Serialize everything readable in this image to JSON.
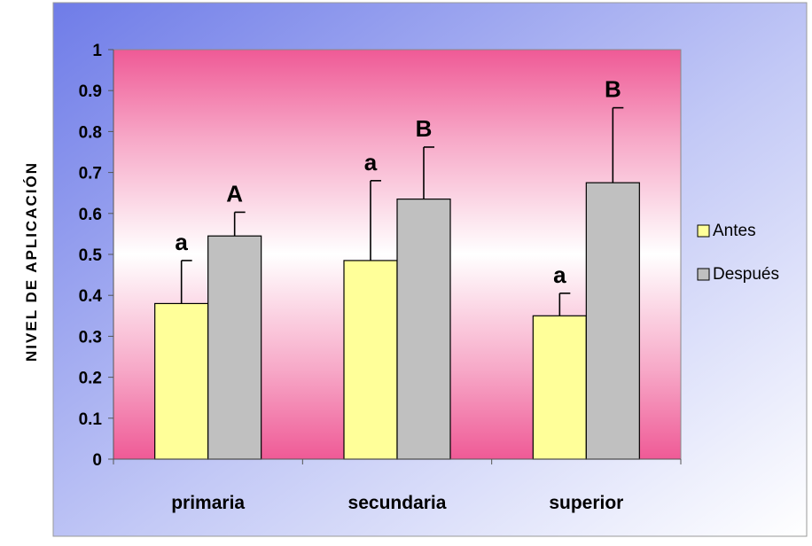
{
  "chart_data": {
    "type": "bar",
    "ylabel": "NIVEL DE APLICACIÓN",
    "ylim": [
      0,
      1
    ],
    "y_ticks": [
      "0",
      "0.1",
      "0.2",
      "0.3",
      "0.4",
      "0.5",
      "0.6",
      "0.7",
      "0.8",
      "0.9",
      "1"
    ],
    "categories": [
      "primaria",
      "secundaria",
      "superior"
    ],
    "series": [
      {
        "name": "Antes",
        "color": "#ffff99",
        "values": [
          0.38,
          0.485,
          0.35
        ],
        "error_upper": [
          0.485,
          0.68,
          0.405
        ],
        "significance_labels": [
          "a",
          "a",
          "a"
        ]
      },
      {
        "name": "Después",
        "color": "#c0c0c0",
        "values": [
          0.545,
          0.635,
          0.675
        ],
        "error_upper": [
          0.603,
          0.762,
          0.858
        ],
        "significance_labels": [
          "A",
          "B",
          "B"
        ]
      }
    ],
    "grid": false,
    "legend_position": "right",
    "background": {
      "outer_gradient": [
        "#6f7ce8",
        "#ffffff"
      ],
      "plot_gradient": [
        "#ef5a96",
        "#ffffff",
        "#ef5a96"
      ]
    }
  }
}
